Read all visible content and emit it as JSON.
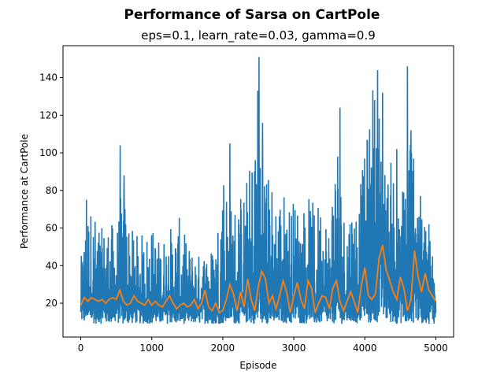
{
  "chart_data": {
    "type": "line",
    "title": "Performance of Sarsa on CartPole",
    "subtitle": "eps=0.1, learn_rate=0.03, gamma=0.9",
    "xlabel": "Episode",
    "ylabel": "Performance at CartPole",
    "xlim": [
      -250,
      5250
    ],
    "ylim": [
      2,
      157
    ],
    "xticks": [
      0,
      1000,
      2000,
      3000,
      4000,
      5000
    ],
    "xtick_labels": [
      "0",
      "1000",
      "2000",
      "3000",
      "4000",
      "5000"
    ],
    "yticks": [
      20,
      40,
      60,
      80,
      100,
      120,
      140
    ],
    "ytick_labels": [
      "20",
      "40",
      "60",
      "80",
      "100",
      "120",
      "140"
    ],
    "grid": false,
    "series_colors": {
      "raw": "#1f77b4",
      "smoothed": "#ff7f0e"
    },
    "series": [
      {
        "id": "raw",
        "style": "noisy-band",
        "x": [
          0,
          100,
          200,
          300,
          400,
          500,
          600,
          700,
          800,
          900,
          1000,
          1100,
          1200,
          1300,
          1400,
          1500,
          1600,
          1700,
          1800,
          1900,
          2000,
          2100,
          2200,
          2300,
          2400,
          2500,
          2600,
          2700,
          2800,
          2900,
          3000,
          3100,
          3200,
          3300,
          3400,
          3500,
          3600,
          3700,
          3800,
          3900,
          4000,
          4100,
          4200,
          4300,
          4400,
          4500,
          4600,
          4700,
          4800,
          4900,
          5000
        ],
        "low": [
          10,
          9,
          9,
          9,
          9,
          9,
          9,
          9,
          9,
          9,
          9,
          9,
          9,
          9,
          9,
          9,
          9,
          9,
          9,
          9,
          9,
          9,
          9,
          9,
          9,
          9,
          9,
          9,
          9,
          9,
          9,
          9,
          9,
          9,
          9,
          9,
          9,
          9,
          9,
          9,
          9,
          9,
          9,
          9,
          9,
          9,
          9,
          9,
          9,
          9,
          9
        ],
        "high": [
          43,
          75,
          68,
          60,
          66,
          58,
          88,
          60,
          57,
          58,
          62,
          55,
          58,
          63,
          66,
          52,
          48,
          46,
          50,
          53,
          105,
          72,
          78,
          82,
          98,
          151,
          95,
          86,
          82,
          80,
          76,
          72,
          78,
          72,
          80,
          62,
          124,
          72,
          76,
          80,
          98,
          144,
          132,
          86,
          102,
          58,
          146,
          112,
          70,
          66,
          40
        ],
        "spikes": [
          {
            "x": 80,
            "y": 75
          },
          {
            "x": 555,
            "y": 104
          },
          {
            "x": 610,
            "y": 88
          },
          {
            "x": 2100,
            "y": 105
          },
          {
            "x": 2510,
            "y": 151
          },
          {
            "x": 2560,
            "y": 116
          },
          {
            "x": 3650,
            "y": 124
          },
          {
            "x": 4180,
            "y": 144
          },
          {
            "x": 4250,
            "y": 132
          },
          {
            "x": 4600,
            "y": 146
          },
          {
            "x": 4650,
            "y": 112
          },
          {
            "x": 4450,
            "y": 102
          }
        ]
      },
      {
        "id": "smoothed",
        "style": "line",
        "x": [
          0,
          50,
          100,
          150,
          200,
          250,
          300,
          350,
          400,
          450,
          500,
          550,
          600,
          650,
          700,
          750,
          800,
          850,
          900,
          950,
          1000,
          1050,
          1100,
          1150,
          1200,
          1250,
          1300,
          1350,
          1400,
          1450,
          1500,
          1550,
          1600,
          1650,
          1700,
          1750,
          1800,
          1850,
          1900,
          1950,
          2000,
          2050,
          2100,
          2150,
          2200,
          2250,
          2300,
          2350,
          2400,
          2450,
          2500,
          2550,
          2600,
          2650,
          2700,
          2750,
          2800,
          2850,
          2900,
          2950,
          3000,
          3050,
          3100,
          3150,
          3200,
          3250,
          3300,
          3350,
          3400,
          3450,
          3500,
          3550,
          3600,
          3650,
          3700,
          3750,
          3800,
          3850,
          3900,
          3950,
          4000,
          4050,
          4100,
          4150,
          4200,
          4250,
          4300,
          4350,
          4400,
          4450,
          4500,
          4550,
          4600,
          4650,
          4700,
          4750,
          4800,
          4850,
          4900,
          4950,
          5000
        ],
        "y": [
          19,
          23,
          21,
          23,
          22,
          21,
          22,
          20,
          22,
          23,
          22,
          27,
          21,
          19,
          20,
          24,
          21,
          20,
          19,
          22,
          19,
          21,
          19,
          18,
          21,
          24,
          20,
          17,
          19,
          20,
          18,
          19,
          22,
          17,
          20,
          27,
          18,
          16,
          20,
          15,
          16,
          22,
          30,
          25,
          16,
          26,
          18,
          33,
          22,
          16,
          29,
          37,
          33,
          20,
          24,
          17,
          24,
          32,
          26,
          15,
          24,
          31,
          22,
          17,
          32,
          28,
          15,
          20,
          24,
          23,
          17,
          28,
          32,
          21,
          16,
          21,
          26,
          21,
          15,
          29,
          39,
          24,
          22,
          25,
          44,
          51,
          38,
          32,
          26,
          22,
          34,
          28,
          16,
          22,
          48,
          34,
          26,
          36,
          27,
          24,
          21
        ]
      }
    ]
  }
}
